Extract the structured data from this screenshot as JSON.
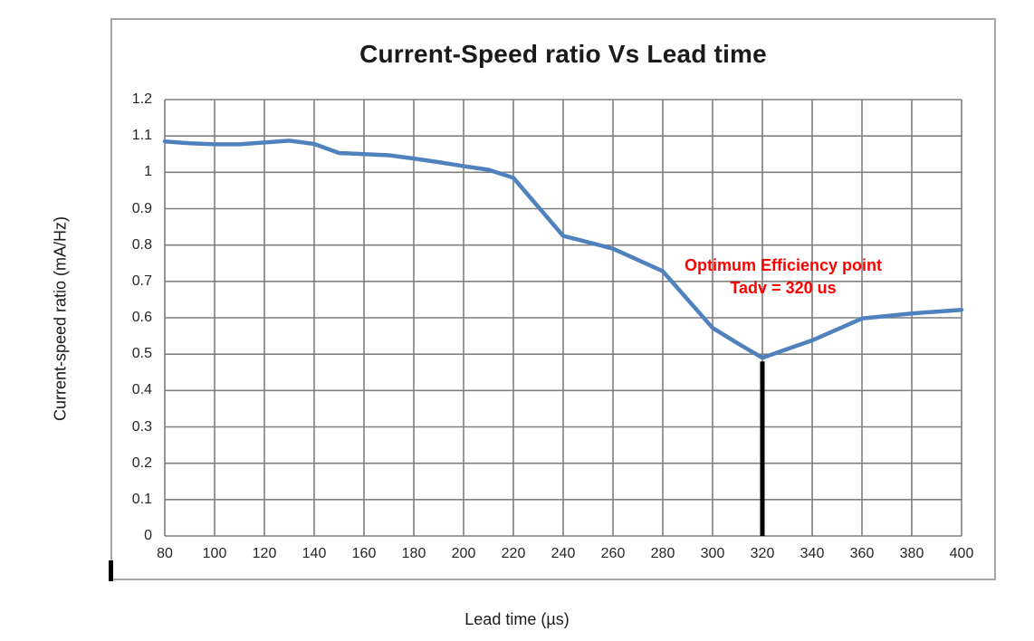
{
  "colors": {
    "series": "#4F81BD",
    "grid": "#7f7f7f",
    "outer_border": "#a6a6a6",
    "annotation": "#FF0000",
    "marker_line": "#000000",
    "text": "#1a1a1a"
  },
  "chart_data": {
    "type": "line",
    "title": "Current-Speed ratio Vs Lead time",
    "xlabel": "Lead time (µs)",
    "ylabel": "Current-speed ratio (mA/Hz)",
    "xlim": [
      80,
      400
    ],
    "ylim": [
      0,
      1.2
    ],
    "x_ticks": [
      80,
      100,
      120,
      140,
      160,
      180,
      200,
      220,
      240,
      260,
      280,
      300,
      320,
      340,
      360,
      380,
      400
    ],
    "y_ticks": [
      0,
      0.1,
      0.2,
      0.3,
      0.4,
      0.5,
      0.6,
      0.7,
      0.8,
      0.9,
      1,
      1.1,
      1.2
    ],
    "y_tick_labels": [
      "0",
      "0.1",
      "0.2",
      "0.3",
      "0.4",
      "0.5",
      "0.6",
      "0.7",
      "0.8",
      "0.9",
      "1",
      "1.1",
      "1.2"
    ],
    "grid": true,
    "legend": false,
    "series": [
      {
        "name": "Current-speed ratio",
        "color": "#4F81BD",
        "x": [
          80,
          90,
          100,
          110,
          120,
          130,
          140,
          150,
          160,
          170,
          180,
          190,
          200,
          210,
          220,
          230,
          240,
          250,
          260,
          270,
          280,
          290,
          300,
          310,
          320,
          330,
          340,
          350,
          360,
          370,
          380,
          390,
          400
        ],
        "y": [
          1.085,
          1.08,
          1.077,
          1.077,
          1.082,
          1.087,
          1.078,
          1.053,
          1.05,
          1.047,
          1.038,
          1.028,
          1.017,
          1.007,
          0.985,
          0.905,
          0.825,
          0.808,
          0.79,
          0.759,
          0.728,
          0.65,
          0.572,
          0.53,
          0.49,
          0.514,
          0.538,
          0.568,
          0.598,
          0.605,
          0.612,
          0.617,
          0.622
        ]
      }
    ],
    "annotation": {
      "line1": "Optimum Efficiency point",
      "line2": "Tadv = 320 us",
      "color": "#FF0000"
    },
    "marker_line": {
      "type": "vertical",
      "x": 320,
      "from_y": 0.48,
      "to_y": 0,
      "color": "#000000",
      "meaning": "optimum efficiency point at lead time 320 us, ratio ~0.49"
    }
  }
}
